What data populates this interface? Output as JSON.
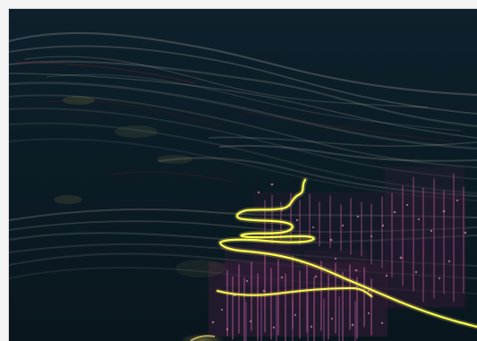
{
  "scene": {
    "subject": "point-cloud-with-trajectory",
    "colors": {
      "background": "#0b1b24",
      "frame": "#f4f4f4",
      "terrain_strands": "#d9cfc6",
      "terrain_dim": "#7e6f6a",
      "dense_pink": "#d86aa8",
      "dense_purple": "#8b4a8c",
      "trajectory": "#ffff4d",
      "highlight": "#ffe46b"
    }
  }
}
